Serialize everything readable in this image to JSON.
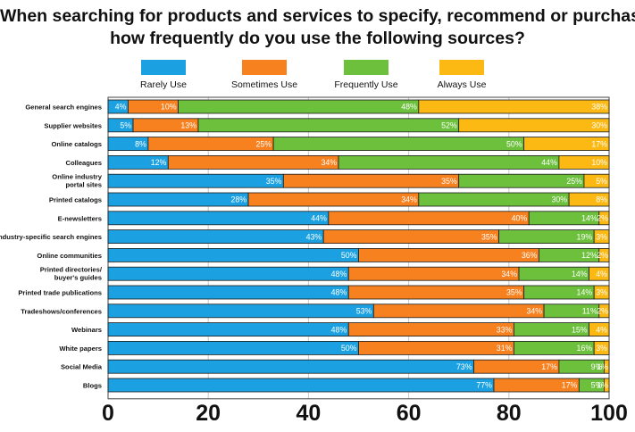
{
  "chart_data": {
    "type": "bar",
    "orientation": "horizontal",
    "stacked": true,
    "title": [
      "When searching for products and services to specify, recommend or purchase,",
      "how frequently do you use the following sources?"
    ],
    "xlim": [
      0,
      100
    ],
    "x_ticks": [
      "0",
      "20",
      "40",
      "60",
      "80",
      "100"
    ],
    "x_tick_values": [
      0,
      20,
      40,
      60,
      80,
      100
    ],
    "legend_position": "top",
    "categories": [
      [
        "General search engines"
      ],
      [
        "Supplier websites"
      ],
      [
        "Online catalogs"
      ],
      [
        "Colleagues"
      ],
      [
        "Online industry",
        "portal sites"
      ],
      [
        "Printed catalogs"
      ],
      [
        "E-newsletters"
      ],
      [
        "Industry-specific search engines"
      ],
      [
        "Online communities"
      ],
      [
        "Printed directories/",
        "buyer's guides"
      ],
      [
        "Printed trade publications"
      ],
      [
        "Tradeshows/conferences"
      ],
      [
        "Webinars"
      ],
      [
        "White papers"
      ],
      [
        "Social Media"
      ],
      [
        "Blogs"
      ]
    ],
    "series": [
      {
        "name": "Rarely Use",
        "color": "#1ba1e2",
        "values": [
          4,
          5,
          8,
          12,
          35,
          28,
          44,
          43,
          50,
          48,
          48,
          53,
          48,
          50,
          73,
          77
        ],
        "labels": [
          "4%",
          "5%",
          "8%",
          "12%",
          "35%",
          "28%",
          "44%",
          "43%",
          "50%",
          "48%",
          "48%",
          "53%",
          "48%",
          "50%",
          "73%",
          "77%"
        ]
      },
      {
        "name": "Sometimes Use",
        "color": "#f7811e",
        "values": [
          10,
          13,
          25,
          34,
          35,
          34,
          40,
          35,
          36,
          34,
          35,
          34,
          33,
          31,
          17,
          17
        ],
        "labels": [
          "10%",
          "13%",
          "25%",
          "34%",
          "35%",
          "34%",
          "40%",
          "35%",
          "36%",
          "34%",
          "35%",
          "34%",
          "33%",
          "31%",
          "17%",
          "17%"
        ]
      },
      {
        "name": "Frequently Use",
        "color": "#6cc03c",
        "values": [
          48,
          52,
          50,
          44,
          25,
          30,
          14,
          19,
          12,
          14,
          14,
          11,
          15,
          16,
          9,
          5
        ],
        "labels": [
          "48%",
          "52%",
          "50%",
          "44%",
          "25%",
          "30%",
          "14%",
          "19%",
          "12%",
          "14%",
          "14%",
          "11%",
          "15%",
          "16%",
          "9%",
          "5%"
        ]
      },
      {
        "name": "Always Use",
        "color": "#fdb913",
        "values": [
          38,
          30,
          17,
          10,
          5,
          8,
          2,
          3,
          2,
          4,
          3,
          2,
          4,
          3,
          1,
          1
        ],
        "labels": [
          "38%",
          "30%",
          "17%",
          "10%",
          "5%",
          "8%",
          "2%",
          "3%",
          "2%",
          "4%",
          "3%",
          "2%",
          "4%",
          "3%",
          "1%",
          "1%"
        ]
      }
    ]
  }
}
